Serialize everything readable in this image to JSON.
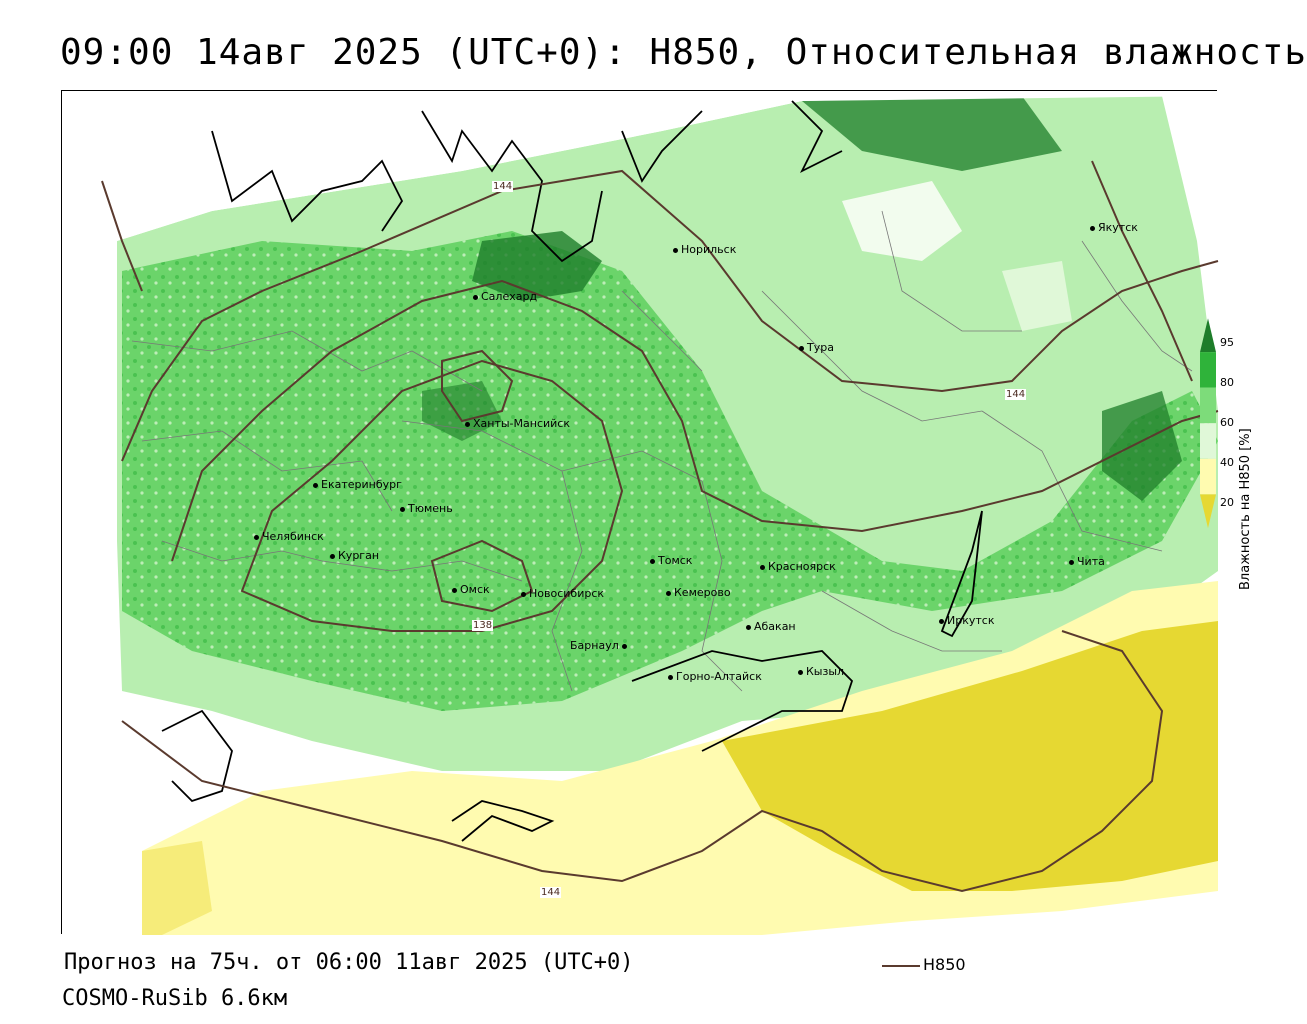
{
  "title": "09:00 14авг 2025 (UTC+0): H850, Относительная влажность",
  "footer": {
    "forecast": "Прогноз на 75ч. от 06:00 11авг 2025 (UTC+0)",
    "model": "COSMO-RuSib 6.6км"
  },
  "line_legend": {
    "label": "H850",
    "color": "#5a3a2e"
  },
  "colorbar": {
    "title": "Влажность на H850 [%]",
    "ticks": [
      "95",
      "80",
      "60",
      "40",
      "20"
    ],
    "colors": {
      "gt95": "#1e7d2a",
      "c80_95": "#2fb33a",
      "c60_80": "#7ddc7a",
      "c40_60": "#e0f8d8",
      "c20_40": "#fffbb0",
      "lt20": "#e6d832"
    }
  },
  "cities": [
    {
      "name": "Норильск"
    },
    {
      "name": "Якутск"
    },
    {
      "name": "Салехард"
    },
    {
      "name": "Тура"
    },
    {
      "name": "Ханты-Мансийск"
    },
    {
      "name": "Екатеринбург"
    },
    {
      "name": "Тюмень"
    },
    {
      "name": "Челябинск"
    },
    {
      "name": "Курган"
    },
    {
      "name": "Омск"
    },
    {
      "name": "Новосибирск"
    },
    {
      "name": "Томск"
    },
    {
      "name": "Кемерово"
    },
    {
      "name": "Красноярск"
    },
    {
      "name": "Чита"
    },
    {
      "name": "Иркутск"
    },
    {
      "name": "Абакан"
    },
    {
      "name": "Барнаул"
    },
    {
      "name": "Горно-Алтайск"
    },
    {
      "name": "Кызыл"
    }
  ],
  "contour_labels": [
    "144",
    "144",
    "144",
    "138"
  ]
}
